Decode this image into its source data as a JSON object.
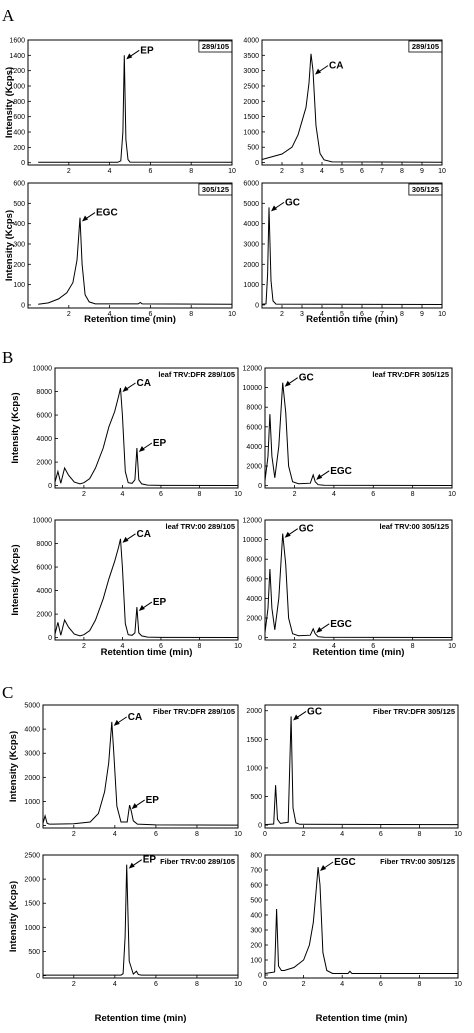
{
  "figure": {
    "panel_labels": [
      "A",
      "B",
      "C"
    ]
  },
  "chart_data": [
    {
      "type": "line",
      "group": "A",
      "label": "289/105",
      "label_boxed": true,
      "xlim": [
        0,
        10
      ],
      "ylim": [
        -30,
        1600
      ],
      "xticks": [
        2,
        4,
        6,
        8,
        10
      ],
      "yticks": [
        0,
        200,
        400,
        600,
        800,
        1000,
        1200,
        1400,
        1600
      ],
      "xlabel": "",
      "ylabel": "Intensity (Kcps)",
      "series": [
        {
          "x": [
            0.5,
            4.4,
            4.55,
            4.65,
            4.72,
            4.8,
            4.9,
            5.0,
            10
          ],
          "y": [
            5,
            5,
            25,
            400,
            1400,
            300,
            40,
            8,
            5
          ]
        }
      ],
      "annotations": [
        {
          "text": "EP",
          "x": 4.72,
          "y": 1400
        }
      ]
    },
    {
      "type": "line",
      "group": "A",
      "label": "289/105",
      "label_boxed": true,
      "xlim": [
        1,
        10
      ],
      "ylim": [
        -80,
        4000
      ],
      "xticks": [
        2,
        3,
        4,
        5,
        6,
        7,
        8,
        9,
        10
      ],
      "yticks": [
        0,
        500,
        1000,
        1500,
        2000,
        2500,
        3000,
        3500,
        4000
      ],
      "xlabel": "",
      "ylabel": "",
      "series": [
        {
          "x": [
            1,
            2.0,
            2.5,
            2.8,
            3.0,
            3.2,
            3.35,
            3.45,
            3.55,
            3.7,
            3.9,
            4.1,
            4.5,
            10
          ],
          "y": [
            100,
            280,
            500,
            900,
            1350,
            1800,
            2600,
            3550,
            3000,
            1200,
            300,
            90,
            20,
            10
          ]
        }
      ],
      "annotations": [
        {
          "text": "CA",
          "x": 3.55,
          "y": 3000
        }
      ]
    },
    {
      "type": "line",
      "group": "A",
      "label": "305/125",
      "label_boxed": true,
      "xlim": [
        0,
        10
      ],
      "ylim": [
        -15,
        600
      ],
      "xticks": [
        2,
        4,
        6,
        8,
        10
      ],
      "yticks": [
        0,
        100,
        200,
        300,
        400,
        500,
        600
      ],
      "xlabel": "Retention time (min)",
      "ylabel": "Intensity (Kcps)",
      "series": [
        {
          "x": [
            0.5,
            1.0,
            1.5,
            1.9,
            2.2,
            2.4,
            2.55,
            2.65,
            2.8,
            3.0,
            3.3,
            5.4,
            5.5,
            5.6,
            10
          ],
          "y": [
            3,
            10,
            30,
            60,
            110,
            220,
            430,
            200,
            50,
            15,
            5,
            5,
            12,
            5,
            3
          ]
        }
      ],
      "annotations": [
        {
          "text": "EGC",
          "x": 2.55,
          "y": 430
        }
      ]
    },
    {
      "type": "line",
      "group": "A",
      "label": "305/125",
      "label_boxed": true,
      "xlim": [
        1,
        10
      ],
      "ylim": [
        -150,
        6000
      ],
      "xticks": [
        2,
        3,
        4,
        5,
        6,
        7,
        8,
        9,
        10
      ],
      "yticks": [
        0,
        1000,
        2000,
        3000,
        4000,
        5000,
        6000
      ],
      "xlabel": "Retention time (min)",
      "ylabel": "",
      "series": [
        {
          "x": [
            1,
            1.2,
            1.28,
            1.35,
            1.45,
            1.55,
            1.7,
            10
          ],
          "y": [
            30,
            50,
            1500,
            4800,
            1200,
            200,
            40,
            20
          ]
        }
      ],
      "annotations": [
        {
          "text": "GC",
          "x": 1.35,
          "y": 4800
        }
      ]
    },
    {
      "type": "line",
      "group": "B",
      "label": "leaf TRV:DFR 289/105",
      "label_boxed": false,
      "xlim": [
        0.5,
        10
      ],
      "ylim": [
        -200,
        10000
      ],
      "xticks": [
        2,
        4,
        6,
        8,
        10
      ],
      "yticks": [
        0,
        2000,
        4000,
        6000,
        8000,
        10000
      ],
      "xlabel": "",
      "ylabel": "Intensity (Kcps)",
      "series": [
        {
          "x": [
            0.5,
            0.65,
            0.8,
            1.0,
            1.2,
            1.5,
            1.8,
            2.0,
            2.3,
            2.6,
            3.0,
            3.3,
            3.6,
            3.8,
            3.9,
            4.0,
            4.15,
            4.3,
            4.5,
            4.65,
            4.75,
            4.85,
            5.0,
            5.3,
            6,
            10
          ],
          "y": [
            300,
            1200,
            200,
            1500,
            900,
            300,
            150,
            250,
            600,
            1500,
            3200,
            5000,
            6300,
            7600,
            8300,
            6000,
            1200,
            250,
            200,
            500,
            3200,
            500,
            150,
            50,
            20,
            10
          ]
        }
      ],
      "annotations": [
        {
          "text": "CA",
          "x": 3.9,
          "y": 8300
        },
        {
          "text": "EP",
          "x": 4.75,
          "y": 3200
        }
      ]
    },
    {
      "type": "line",
      "group": "B",
      "label": "leaf TRV:DFR 305/125",
      "label_boxed": false,
      "xlim": [
        0.5,
        10
      ],
      "ylim": [
        -240,
        12000
      ],
      "xticks": [
        2,
        4,
        6,
        8,
        10
      ],
      "yticks": [
        0,
        2000,
        4000,
        6000,
        8000,
        10000,
        12000
      ],
      "xlabel": "",
      "ylabel": "",
      "series": [
        {
          "x": [
            0.5,
            0.65,
            0.75,
            0.85,
            1.0,
            1.2,
            1.4,
            1.55,
            1.7,
            1.9,
            2.2,
            2.8,
            2.95,
            3.05,
            3.2,
            3.5,
            10
          ],
          "y": [
            500,
            3000,
            7300,
            3000,
            800,
            4000,
            10500,
            7500,
            2000,
            400,
            200,
            250,
            1100,
            400,
            100,
            40,
            20
          ]
        }
      ],
      "annotations": [
        {
          "text": "GC",
          "x": 1.4,
          "y": 10500
        },
        {
          "text": "EGC",
          "x": 3.0,
          "y": 1000
        }
      ]
    },
    {
      "type": "line",
      "group": "B",
      "label": "leaf TRV:00 289/105",
      "label_boxed": false,
      "xlim": [
        0.5,
        10
      ],
      "ylim": [
        -200,
        10000
      ],
      "xticks": [
        2,
        4,
        6,
        8,
        10
      ],
      "yticks": [
        0,
        2000,
        4000,
        6000,
        8000,
        10000
      ],
      "xlabel": "Retention time (min)",
      "ylabel": "Intensity (Kcps)",
      "series": [
        {
          "x": [
            0.5,
            0.65,
            0.8,
            1.0,
            1.2,
            1.5,
            1.8,
            2.0,
            2.3,
            2.6,
            3.0,
            3.3,
            3.6,
            3.8,
            3.9,
            4.0,
            4.15,
            4.3,
            4.5,
            4.65,
            4.75,
            4.85,
            5.0,
            5.3,
            6,
            10
          ],
          "y": [
            300,
            1300,
            200,
            1500,
            900,
            300,
            150,
            250,
            600,
            1500,
            3300,
            5000,
            6500,
            7700,
            8400,
            6000,
            1200,
            250,
            200,
            400,
            2600,
            400,
            150,
            50,
            20,
            10
          ]
        }
      ],
      "annotations": [
        {
          "text": "CA",
          "x": 3.9,
          "y": 8400
        },
        {
          "text": "EP",
          "x": 4.75,
          "y": 2600
        }
      ]
    },
    {
      "type": "line",
      "group": "B",
      "label": "leaf TRV:00 305/125",
      "label_boxed": false,
      "xlim": [
        0.5,
        10
      ],
      "ylim": [
        -240,
        12000
      ],
      "xticks": [
        2,
        4,
        6,
        8,
        10
      ],
      "yticks": [
        0,
        2000,
        4000,
        6000,
        8000,
        10000,
        12000
      ],
      "xlabel": "Retention time (min)",
      "ylabel": "",
      "series": [
        {
          "x": [
            0.5,
            0.65,
            0.75,
            0.85,
            1.0,
            1.2,
            1.4,
            1.55,
            1.7,
            1.9,
            2.2,
            2.8,
            2.95,
            3.05,
            3.2,
            3.5,
            10
          ],
          "y": [
            500,
            3000,
            7000,
            3000,
            800,
            4000,
            10600,
            7500,
            2000,
            400,
            200,
            250,
            900,
            400,
            100,
            40,
            20
          ]
        }
      ],
      "annotations": [
        {
          "text": "GC",
          "x": 1.4,
          "y": 10600
        },
        {
          "text": "EGC",
          "x": 3.0,
          "y": 900
        }
      ]
    },
    {
      "type": "line",
      "group": "C",
      "label": "Fiber TRV:DFR 289/105",
      "label_boxed": false,
      "xlim": [
        0.5,
        10
      ],
      "ylim": [
        -100,
        5000
      ],
      "xticks": [
        2,
        4,
        6,
        8,
        10
      ],
      "yticks": [
        0,
        1000,
        2000,
        3000,
        4000,
        5000
      ],
      "xlabel": "",
      "ylabel": "Intensity (Kcps)",
      "series": [
        {
          "x": [
            0.5,
            0.6,
            0.7,
            0.8,
            1.0,
            2.0,
            2.8,
            3.2,
            3.5,
            3.7,
            3.85,
            3.95,
            4.1,
            4.3,
            4.6,
            4.72,
            4.8,
            4.9,
            5.1,
            6,
            10
          ],
          "y": [
            100,
            400,
            100,
            60,
            60,
            80,
            150,
            500,
            1400,
            2600,
            4300,
            3000,
            800,
            150,
            150,
            850,
            600,
            200,
            60,
            30,
            20
          ]
        }
      ],
      "annotations": [
        {
          "text": "CA",
          "x": 3.85,
          "y": 4300
        },
        {
          "text": "EP",
          "x": 4.72,
          "y": 850
        }
      ]
    },
    {
      "type": "line",
      "group": "C",
      "label": "Fiber TRV:DFR 305/125",
      "label_boxed": false,
      "xlim": [
        0,
        10
      ],
      "ylim": [
        -50,
        2100
      ],
      "xticks": [
        0,
        2,
        4,
        6,
        8,
        10
      ],
      "yticks": [
        0,
        500,
        1000,
        1500,
        2000
      ],
      "xlabel": "",
      "ylabel": "",
      "series": [
        {
          "x": [
            0,
            0.45,
            0.55,
            0.65,
            0.8,
            1.2,
            1.35,
            1.45,
            1.6,
            1.8,
            10
          ],
          "y": [
            10,
            20,
            700,
            100,
            30,
            50,
            1900,
            300,
            40,
            15,
            10
          ]
        }
      ],
      "annotations": [
        {
          "text": "GC",
          "x": 1.35,
          "y": 1900
        }
      ]
    },
    {
      "type": "line",
      "group": "C",
      "label": "Fiber TRV:00 289/105",
      "label_boxed": false,
      "xlim": [
        0.5,
        10
      ],
      "ylim": [
        -50,
        2500
      ],
      "xticks": [
        2,
        4,
        6,
        8,
        10
      ],
      "yticks": [
        0,
        500,
        1000,
        1500,
        2000,
        2500
      ],
      "xlabel": "Retention time (min)",
      "ylabel": "Intensity (Kcps)",
      "series": [
        {
          "x": [
            0.5,
            4.3,
            4.4,
            4.5,
            4.58,
            4.7,
            4.9,
            5.05,
            5.15,
            5.3,
            10
          ],
          "y": [
            10,
            10,
            40,
            800,
            2300,
            300,
            30,
            90,
            20,
            10,
            10
          ]
        }
      ],
      "annotations": [
        {
          "text": "EP",
          "x": 4.58,
          "y": 2300
        }
      ]
    },
    {
      "type": "line",
      "group": "C",
      "label": "Fiber TRV:00 305/125",
      "label_boxed": false,
      "xlim": [
        0,
        10
      ],
      "ylim": [
        -20,
        800
      ],
      "xticks": [
        0,
        2,
        4,
        6,
        8,
        10
      ],
      "yticks": [
        0,
        100,
        200,
        300,
        400,
        500,
        600,
        700,
        800
      ],
      "xlabel": "Retention time (min)",
      "ylabel": "",
      "series": [
        {
          "x": [
            0,
            0.5,
            0.6,
            0.7,
            0.85,
            1.0,
            1.5,
            2.0,
            2.3,
            2.5,
            2.65,
            2.75,
            2.85,
            3.0,
            3.2,
            3.5,
            4.3,
            4.4,
            4.5,
            10
          ],
          "y": [
            10,
            20,
            440,
            60,
            30,
            30,
            50,
            100,
            200,
            350,
            560,
            720,
            600,
            150,
            30,
            10,
            10,
            25,
            10,
            10
          ]
        }
      ],
      "annotations": [
        {
          "text": "EGC",
          "x": 2.75,
          "y": 720
        }
      ]
    }
  ]
}
